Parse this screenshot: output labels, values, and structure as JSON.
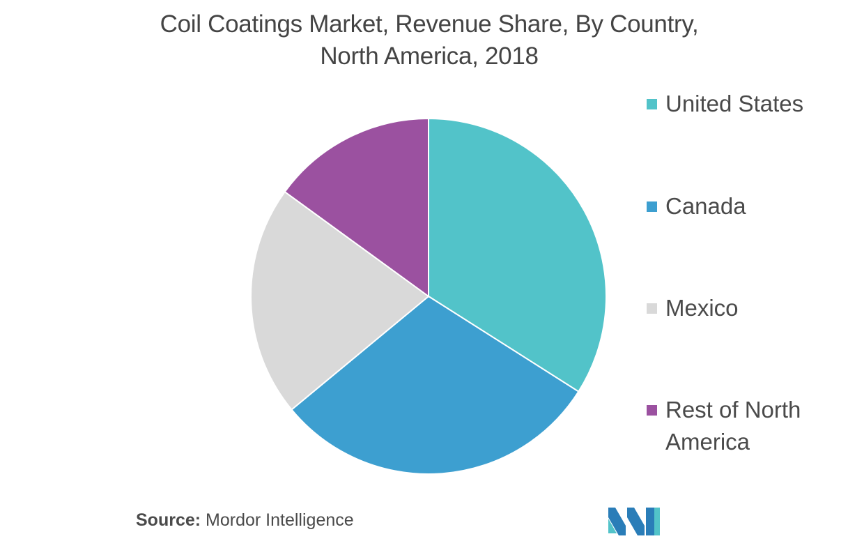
{
  "title": {
    "line1": "Coil Coatings Market, Revenue Share, By Country,",
    "line2": "North America, 2018"
  },
  "source": {
    "label": "Source:",
    "text": "Mordor Intelligence"
  },
  "chart_data": {
    "type": "pie",
    "title": "Coil Coatings Market, Revenue Share, By Country, North America, 2018",
    "categories": [
      "United States",
      "Canada",
      "Mexico",
      "Rest of North America"
    ],
    "values": [
      34,
      30,
      21,
      15
    ],
    "unit": "%",
    "colors": [
      "#52c3c9",
      "#3d9fd0",
      "#d9d9d9",
      "#9b51a0"
    ],
    "start_angle_deg": 0,
    "direction": "clockwise",
    "legend_position": "right",
    "legend": [
      {
        "label": "United States",
        "color": "#52c3c9"
      },
      {
        "label": "Canada",
        "color": "#3d9fd0"
      },
      {
        "label": "Mexico",
        "color": "#d9d9d9"
      },
      {
        "label": "Rest of North America",
        "color": "#9b51a0"
      }
    ]
  },
  "logo": {
    "icon": "mordor-intelligence-logo",
    "colors": [
      "#2a7db8",
      "#52c3c9"
    ]
  }
}
